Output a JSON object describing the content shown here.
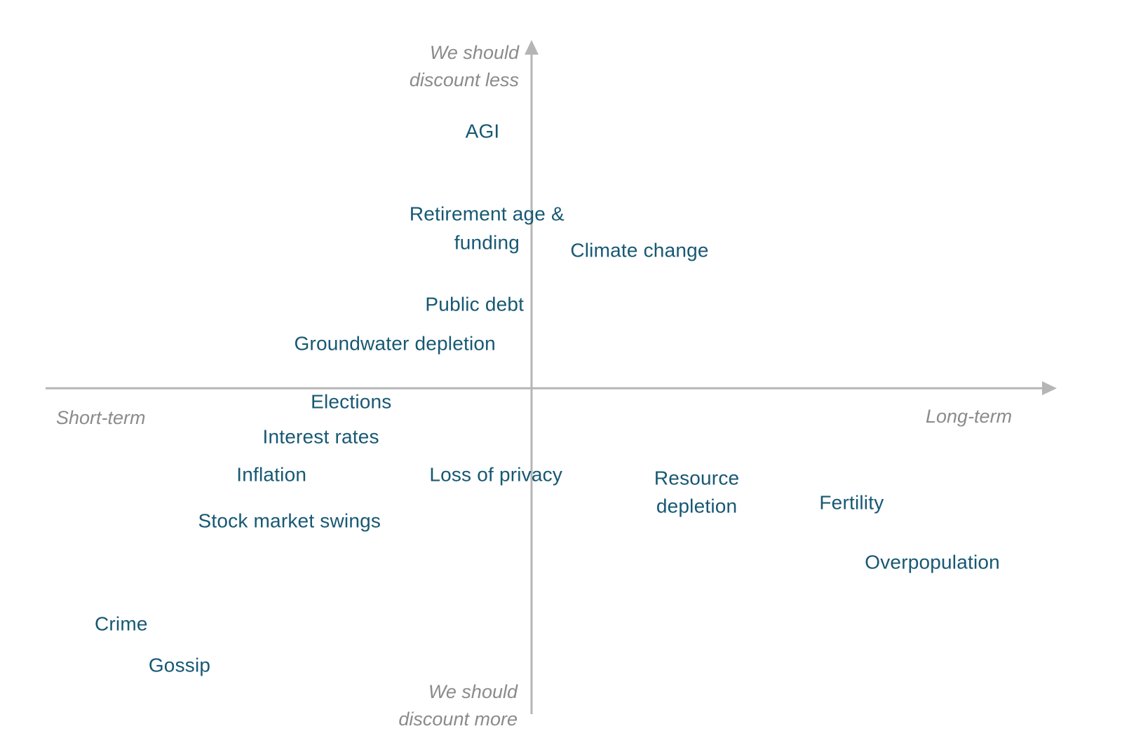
{
  "chart_data": {
    "type": "scatter",
    "title": "",
    "description": "Conceptual quadrant chart of topics by time horizon (x) and how much we should discount them (y); points are text labels only, no markers",
    "x_axis": {
      "left_label": "Short-term",
      "right_label": "Long-term"
    },
    "y_axis": {
      "top_label": "We should\ndiscount less",
      "bottom_label": "We should\ndiscount more"
    },
    "grid": "off",
    "legend": "none",
    "colors": {
      "point_label": "#175873",
      "axis_line": "#b5b5b5",
      "axis_label": "#8b8b8b",
      "background": "#ffffff"
    },
    "origin": {
      "x_pct": 47.4,
      "y_pct": 51.6
    },
    "points": [
      {
        "label": "AGI",
        "x_pct": 43.0,
        "y_pct": 17.5
      },
      {
        "label": "Retirement age &\nfunding",
        "x_pct": 43.4,
        "y_pct": 30.4
      },
      {
        "label": "Climate change",
        "x_pct": 57.0,
        "y_pct": 33.4
      },
      {
        "label": "Public debt",
        "x_pct": 42.3,
        "y_pct": 40.5
      },
      {
        "label": "Groundwater depletion",
        "x_pct": 35.2,
        "y_pct": 45.8
      },
      {
        "label": "Elections",
        "x_pct": 31.3,
        "y_pct": 53.5
      },
      {
        "label": "Interest rates",
        "x_pct": 28.6,
        "y_pct": 58.2
      },
      {
        "label": "Inflation",
        "x_pct": 24.2,
        "y_pct": 63.2
      },
      {
        "label": "Loss of privacy",
        "x_pct": 44.2,
        "y_pct": 63.2
      },
      {
        "label": "Resource\ndepletion",
        "x_pct": 62.1,
        "y_pct": 65.5
      },
      {
        "label": "Fertility",
        "x_pct": 75.9,
        "y_pct": 66.9
      },
      {
        "label": "Stock market swings",
        "x_pct": 25.8,
        "y_pct": 69.3
      },
      {
        "label": "Overpopulation",
        "x_pct": 83.1,
        "y_pct": 74.8
      },
      {
        "label": "Crime",
        "x_pct": 10.8,
        "y_pct": 83.0
      },
      {
        "label": "Gossip",
        "x_pct": 16.0,
        "y_pct": 88.5
      }
    ]
  }
}
